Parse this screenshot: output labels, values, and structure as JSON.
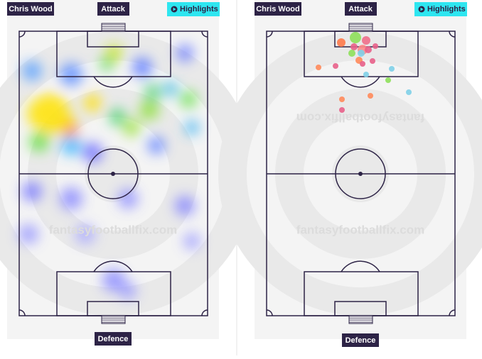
{
  "panels": [
    {
      "player": "Chris Wood",
      "top_label": "Attack",
      "button": "Highlights",
      "bottom_label": "Defence",
      "watermark": "fantasyfootballfix.com"
    },
    {
      "player": "Chris Wood",
      "top_label": "Attack",
      "button": "Highlights",
      "bottom_label": "Defence",
      "watermark": "fantasyfootballfix.com",
      "watermark_top": "fantasyfootballfix.com"
    }
  ]
}
